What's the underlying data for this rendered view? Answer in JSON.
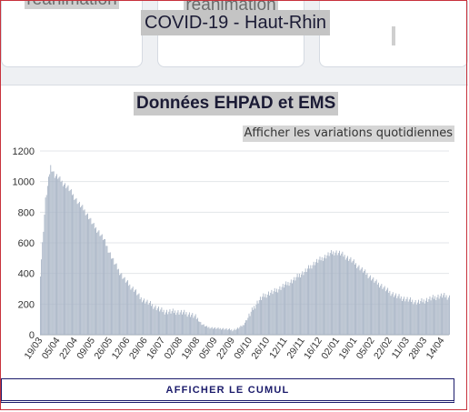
{
  "header": {
    "title": "COVID-19 - Haut-Rhin"
  },
  "cards": [
    {
      "label": "réanimation"
    },
    {
      "label": "réanimation"
    },
    {
      "label": ""
    }
  ],
  "section": {
    "title": "Données EHPAD et EMS"
  },
  "toggle": {
    "label": "Afficher les variations quotidiennes"
  },
  "cumul_button": {
    "label": "AFFICHER LE CUMUL"
  },
  "chart_data": {
    "type": "bar",
    "ylim": [
      0,
      1200
    ],
    "yticks": [
      0,
      200,
      400,
      600,
      800,
      1000,
      1200
    ],
    "grid": true,
    "bar_color": "#a9b5c6",
    "x_labels": [
      "19/03",
      "05/04",
      "22/04",
      "09/05",
      "26/05",
      "12/06",
      "29/06",
      "16/07",
      "02/08",
      "19/08",
      "05/09",
      "22/09",
      "09/10",
      "26/10",
      "12/11",
      "29/11",
      "16/12",
      "02/01",
      "19/01",
      "05/02",
      "22/02",
      "11/03",
      "28/03",
      "14/04"
    ],
    "x_label_days_from_start": [
      0,
      17,
      34,
      51,
      68,
      85,
      102,
      119,
      136,
      153,
      170,
      187,
      204,
      221,
      238,
      255,
      272,
      289,
      306,
      323,
      340,
      357,
      374,
      391
    ],
    "values_days_from_start": [
      0,
      5,
      10,
      14,
      17,
      22,
      27,
      32,
      37,
      42,
      47,
      52,
      57,
      62,
      67,
      72,
      77,
      82,
      87,
      92,
      97,
      102,
      107,
      112,
      117,
      122,
      127,
      132,
      137,
      142,
      147,
      152,
      157,
      162,
      167,
      172,
      177,
      182,
      187,
      192,
      197,
      202,
      207,
      212,
      217,
      222,
      227,
      232,
      237,
      242,
      247,
      252,
      257,
      262,
      267,
      272,
      277,
      282,
      287,
      292,
      297,
      302,
      307,
      312,
      317,
      322,
      327,
      332,
      337,
      342,
      347,
      352,
      357,
      362,
      367,
      372,
      377,
      382,
      387,
      392,
      398
    ],
    "values": [
      400,
      880,
      1100,
      1040,
      1030,
      990,
      960,
      910,
      860,
      820,
      770,
      710,
      670,
      620,
      540,
      470,
      410,
      360,
      320,
      290,
      240,
      220,
      200,
      180,
      160,
      150,
      150,
      150,
      145,
      140,
      130,
      110,
      70,
      50,
      45,
      40,
      40,
      35,
      30,
      40,
      60,
      110,
      170,
      220,
      250,
      270,
      280,
      300,
      320,
      340,
      360,
      390,
      410,
      440,
      470,
      490,
      510,
      530,
      540,
      530,
      510,
      490,
      460,
      430,
      400,
      370,
      340,
      320,
      290,
      270,
      250,
      240,
      230,
      220,
      210,
      220,
      230,
      240,
      250,
      255,
      245
    ]
  }
}
